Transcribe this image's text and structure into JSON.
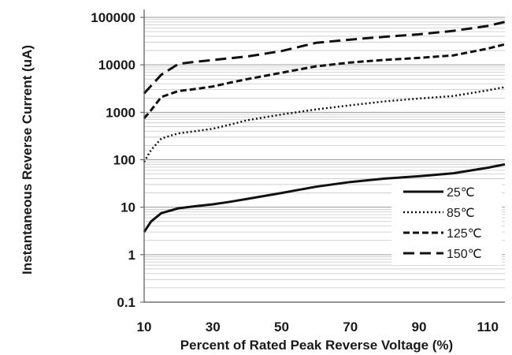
{
  "chart_data": {
    "type": "line",
    "xlabel": "Percent of Rated Peak Reverse Voltage (%)",
    "ylabel": "Instantaneous Reverse Current (uA)",
    "y_scale": "log",
    "xlim": [
      10,
      115
    ],
    "ylim": [
      0.1,
      100000
    ],
    "grid": true,
    "legend_position": "bottom-right",
    "x_ticks": [
      10,
      30,
      50,
      70,
      90,
      110
    ],
    "x_tick_labels": [
      "10",
      "30",
      "50",
      "70",
      "90",
      "110"
    ],
    "y_ticks": [
      0.1,
      1,
      10,
      100,
      1000,
      10000,
      100000
    ],
    "y_tick_labels": [
      "0.1",
      "1",
      "10",
      "100",
      "1000",
      "10000",
      "100000"
    ],
    "series": [
      {
        "name": "25℃",
        "style": "solid",
        "x": [
          10,
          12,
          15,
          20,
          25,
          30,
          35,
          40,
          50,
          60,
          70,
          80,
          90,
          100,
          110,
          115
        ],
        "y": [
          3,
          5,
          7.5,
          9.5,
          10.5,
          11.5,
          13,
          15,
          20,
          27,
          34,
          40,
          45,
          52,
          68,
          80
        ]
      },
      {
        "name": "85℃",
        "style": "dotted",
        "x": [
          10,
          12,
          15,
          20,
          25,
          30,
          35,
          40,
          50,
          60,
          70,
          80,
          90,
          100,
          110,
          115
        ],
        "y": [
          90,
          160,
          280,
          360,
          400,
          450,
          550,
          680,
          900,
          1150,
          1400,
          1700,
          1950,
          2200,
          2900,
          3400
        ]
      },
      {
        "name": "125℃",
        "style": "dashed",
        "x": [
          10,
          12,
          15,
          20,
          25,
          30,
          35,
          40,
          50,
          60,
          70,
          80,
          90,
          100,
          110,
          115
        ],
        "y": [
          750,
          1100,
          2100,
          2800,
          3100,
          3500,
          4200,
          5000,
          6800,
          9300,
          11200,
          12700,
          14000,
          15800,
          22000,
          27000
        ]
      },
      {
        "name": "150℃",
        "style": "long-dashed",
        "x": [
          10,
          12,
          15,
          20,
          25,
          30,
          35,
          40,
          50,
          60,
          70,
          80,
          90,
          100,
          110,
          115
        ],
        "y": [
          2500,
          3600,
          6200,
          10500,
          11600,
          12600,
          13800,
          15000,
          19500,
          29000,
          34000,
          39000,
          44000,
          52000,
          66000,
          80000
        ]
      }
    ]
  }
}
